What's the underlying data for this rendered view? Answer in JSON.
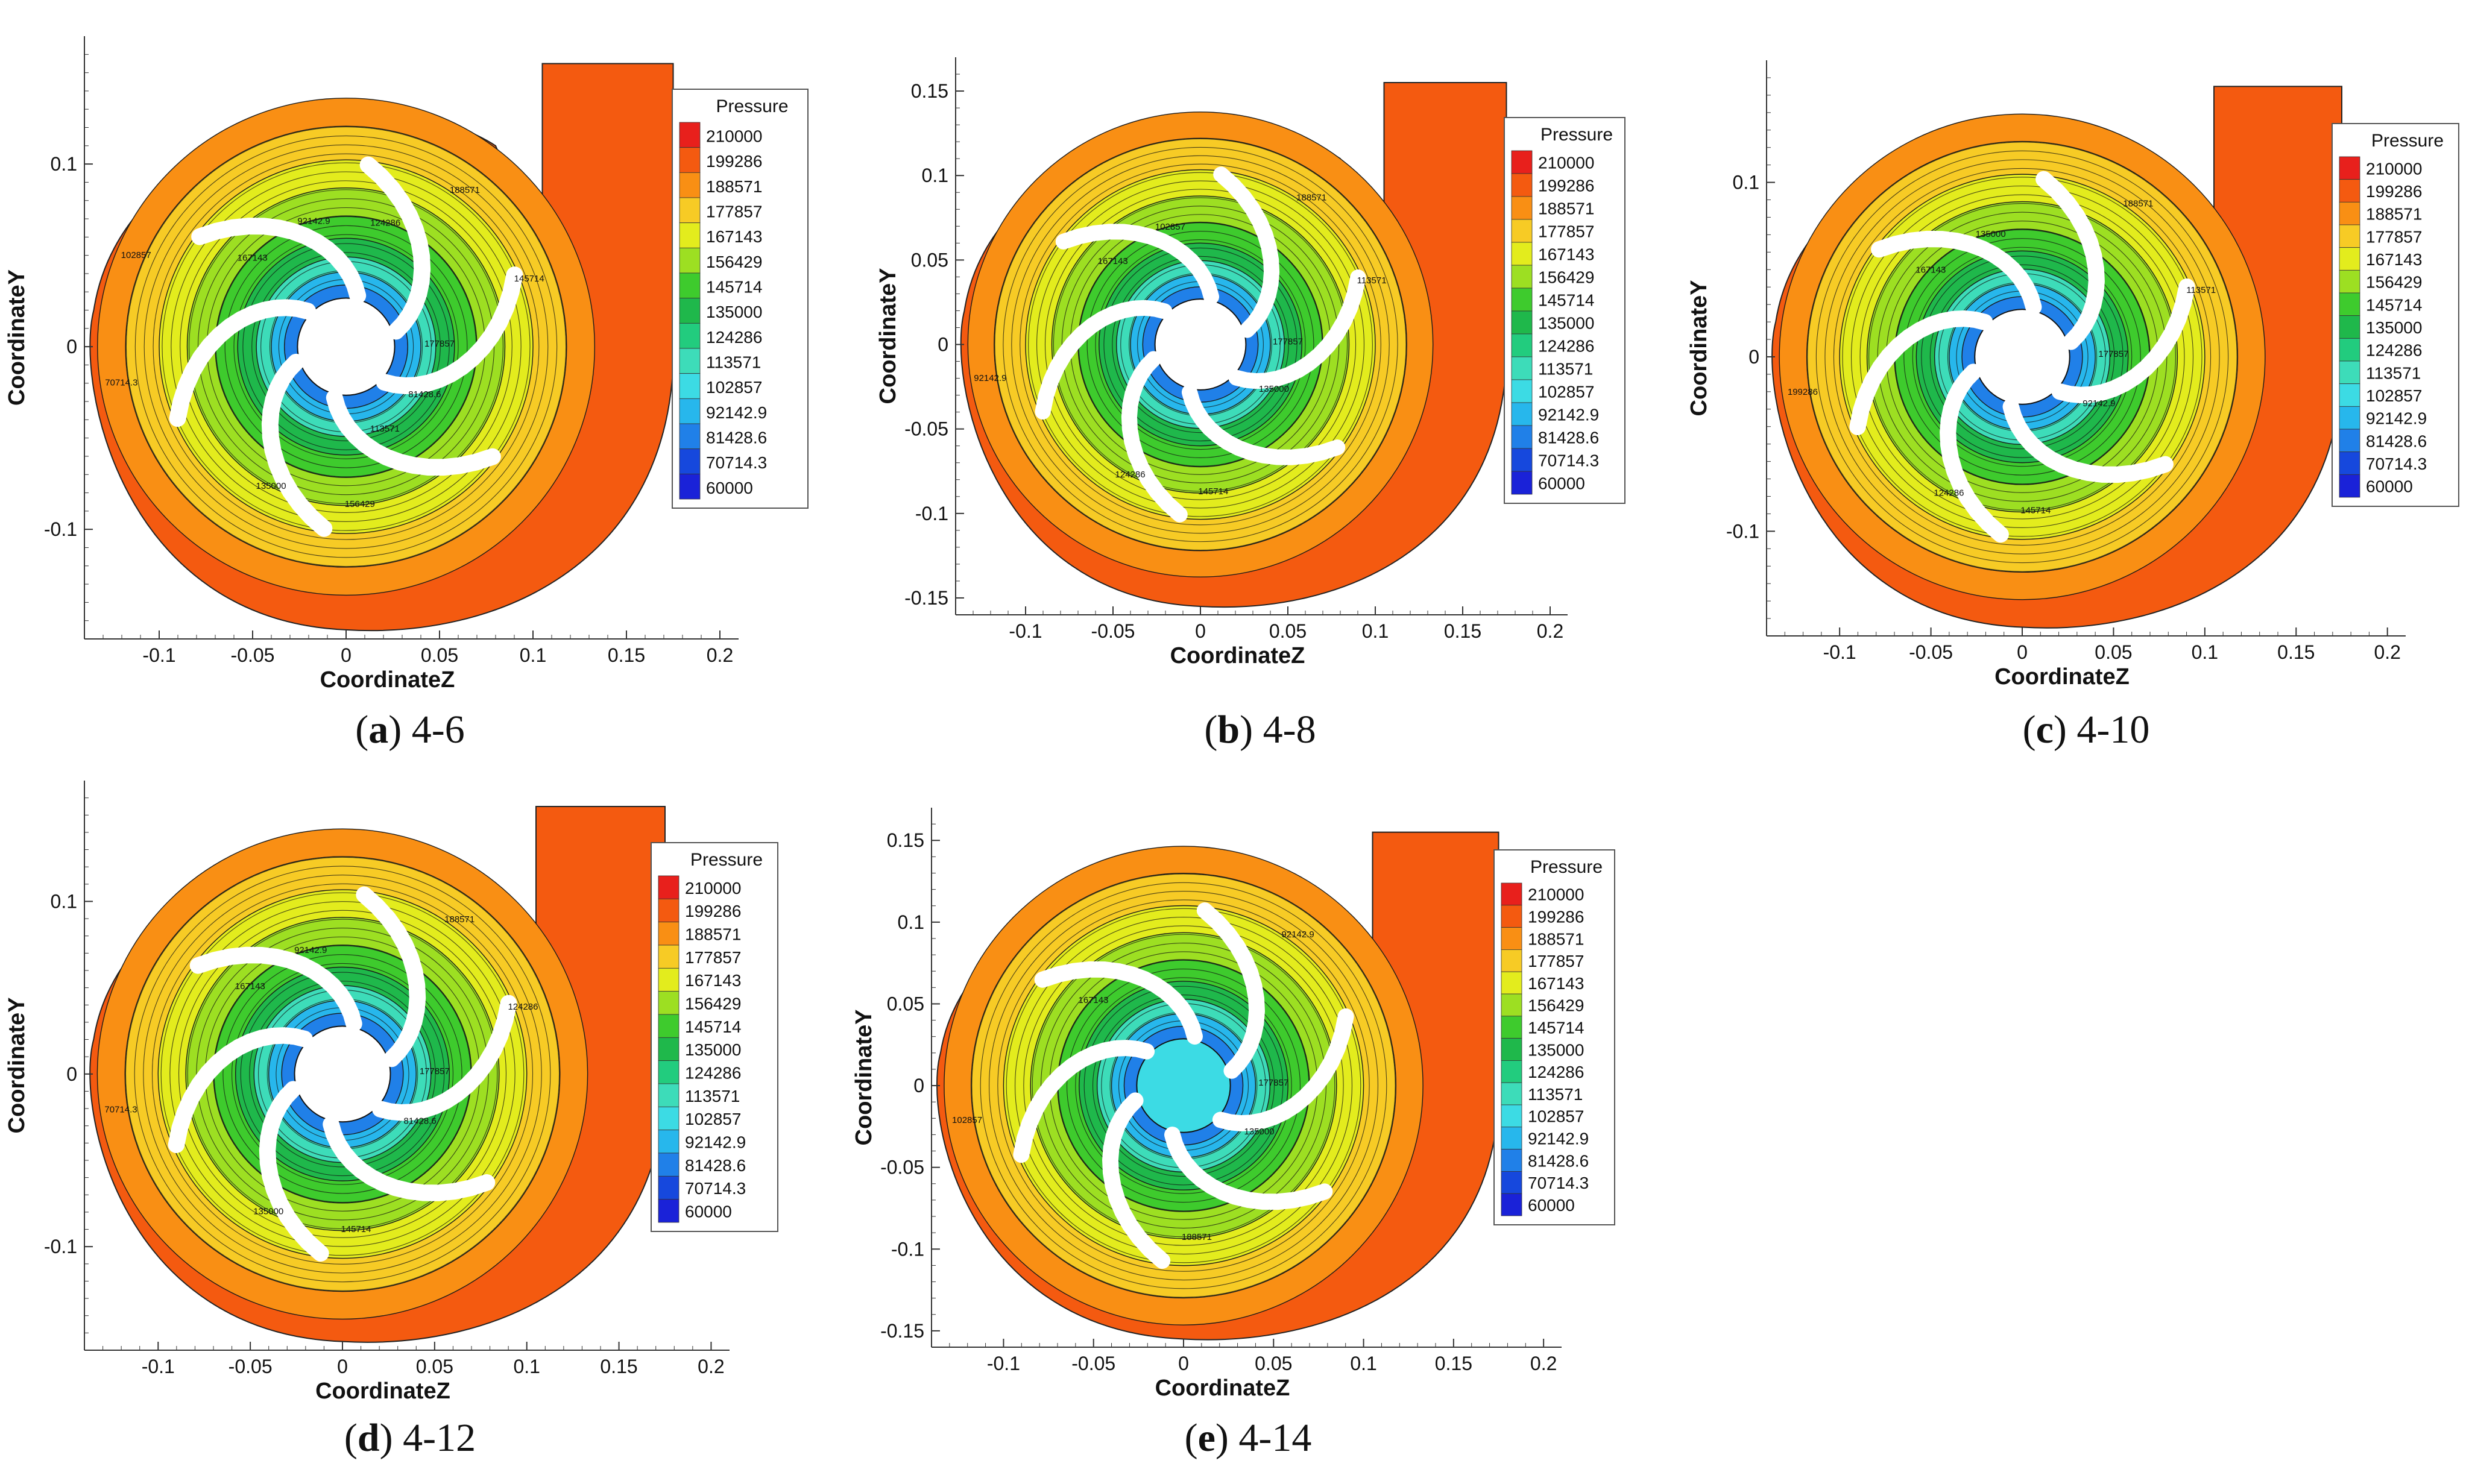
{
  "figure": {
    "colormap": {
      "title": "Pressure",
      "levels": [
        "210000",
        "199286",
        "188571",
        "177857",
        "167143",
        "156429",
        "145714",
        "135000",
        "124286",
        "113571",
        "102857",
        "92142.9",
        "81428.6",
        "70714.3",
        "60000"
      ],
      "colors": [
        "#e8201c",
        "#f45a10",
        "#f98f14",
        "#f7cb25",
        "#e3ec1d",
        "#9ddf22",
        "#3ecb2d",
        "#1fb84b",
        "#22cc7e",
        "#3ddcb9",
        "#3cdbe4",
        "#27b7ec",
        "#2080e8",
        "#1648dd",
        "#1a22d8"
      ]
    },
    "panels": [
      {
        "label": "a",
        "title": "4-6",
        "blades": 6
      },
      {
        "label": "b",
        "title": "4-8",
        "blades": 6
      },
      {
        "label": "c",
        "title": "4-10",
        "blades": 6
      },
      {
        "label": "d",
        "title": "4-12",
        "blades": 6
      },
      {
        "label": "e",
        "title": "4-14",
        "blades": 6
      }
    ]
  },
  "chart_data": [
    {
      "type": "heatmap",
      "panel": "a",
      "title": "4-6",
      "xlabel": "CoordinateZ",
      "ylabel": "CoordinateY",
      "xlim": [
        -0.14,
        0.21
      ],
      "ylim": [
        -0.16,
        0.17
      ],
      "xticks": [
        "-0.1",
        "-0.05",
        "0",
        "0.05",
        "0.1",
        "0.15",
        "0.2"
      ],
      "yticks": [
        "0.1",
        "0",
        "-0.1"
      ],
      "legend_title": "Pressure",
      "contour_labels": [
        "177857",
        "167143",
        "156429",
        "188571",
        "70714.3",
        "81428.6",
        "92142.9",
        "135000",
        "145714",
        "102857",
        "113571",
        "124286"
      ]
    },
    {
      "type": "heatmap",
      "panel": "b",
      "title": "4-8",
      "xlabel": "CoordinateZ",
      "ylabel": "CoordinateY",
      "xlim": [
        -0.14,
        0.21
      ],
      "ylim": [
        -0.16,
        0.17
      ],
      "xticks": [
        "-0.1",
        "-0.05",
        "0",
        "0.05",
        "0.1",
        "0.15",
        "0.2"
      ],
      "yticks": [
        "0.15",
        "0.1",
        "0.05",
        "0",
        "-0.05",
        "-0.1",
        "-0.15"
      ],
      "legend_title": "Pressure",
      "contour_labels": [
        "177857",
        "167143",
        "145714",
        "188571",
        "92142.9",
        "135000",
        "102857",
        "124286",
        "113571"
      ]
    },
    {
      "type": "heatmap",
      "panel": "c",
      "title": "4-10",
      "xlabel": "CoordinateZ",
      "ylabel": "CoordinateY",
      "xlim": [
        -0.14,
        0.21
      ],
      "ylim": [
        -0.16,
        0.17
      ],
      "xticks": [
        "-0.1",
        "-0.05",
        "0",
        "0.05",
        "0.1",
        "0.15",
        "0.2"
      ],
      "yticks": [
        "0.1",
        "0",
        "-0.1"
      ],
      "legend_title": "Pressure",
      "contour_labels": [
        "177857",
        "167143",
        "145714",
        "188571",
        "199286",
        "92142.9",
        "135000",
        "124286",
        "113571"
      ]
    },
    {
      "type": "heatmap",
      "panel": "d",
      "title": "4-12",
      "xlabel": "CoordinateZ",
      "ylabel": "CoordinateY",
      "xlim": [
        -0.14,
        0.21
      ],
      "ylim": [
        -0.16,
        0.17
      ],
      "xticks": [
        "-0.1",
        "-0.05",
        "0",
        "0.05",
        "0.1",
        "0.15",
        "0.2"
      ],
      "yticks": [
        "0.1",
        "0",
        "-0.1"
      ],
      "legend_title": "Pressure",
      "contour_labels": [
        "177857",
        "167143",
        "145714",
        "188571",
        "70714.3",
        "81428.6",
        "92142.9",
        "135000",
        "124286"
      ]
    },
    {
      "type": "heatmap",
      "panel": "e",
      "title": "4-14",
      "xlabel": "CoordinateZ",
      "ylabel": "CoordinateY",
      "xlim": [
        -0.14,
        0.21
      ],
      "ylim": [
        -0.16,
        0.17
      ],
      "xticks": [
        "-0.1",
        "-0.05",
        "0",
        "0.05",
        "0.1",
        "0.15",
        "0.2"
      ],
      "yticks": [
        "0.15",
        "0.1",
        "0.05",
        "0",
        "-0.05",
        "-0.1",
        "-0.15"
      ],
      "legend_title": "Pressure",
      "contour_labels": [
        "177857",
        "167143",
        "188571",
        "92142.9",
        "102857",
        "135000"
      ]
    }
  ]
}
